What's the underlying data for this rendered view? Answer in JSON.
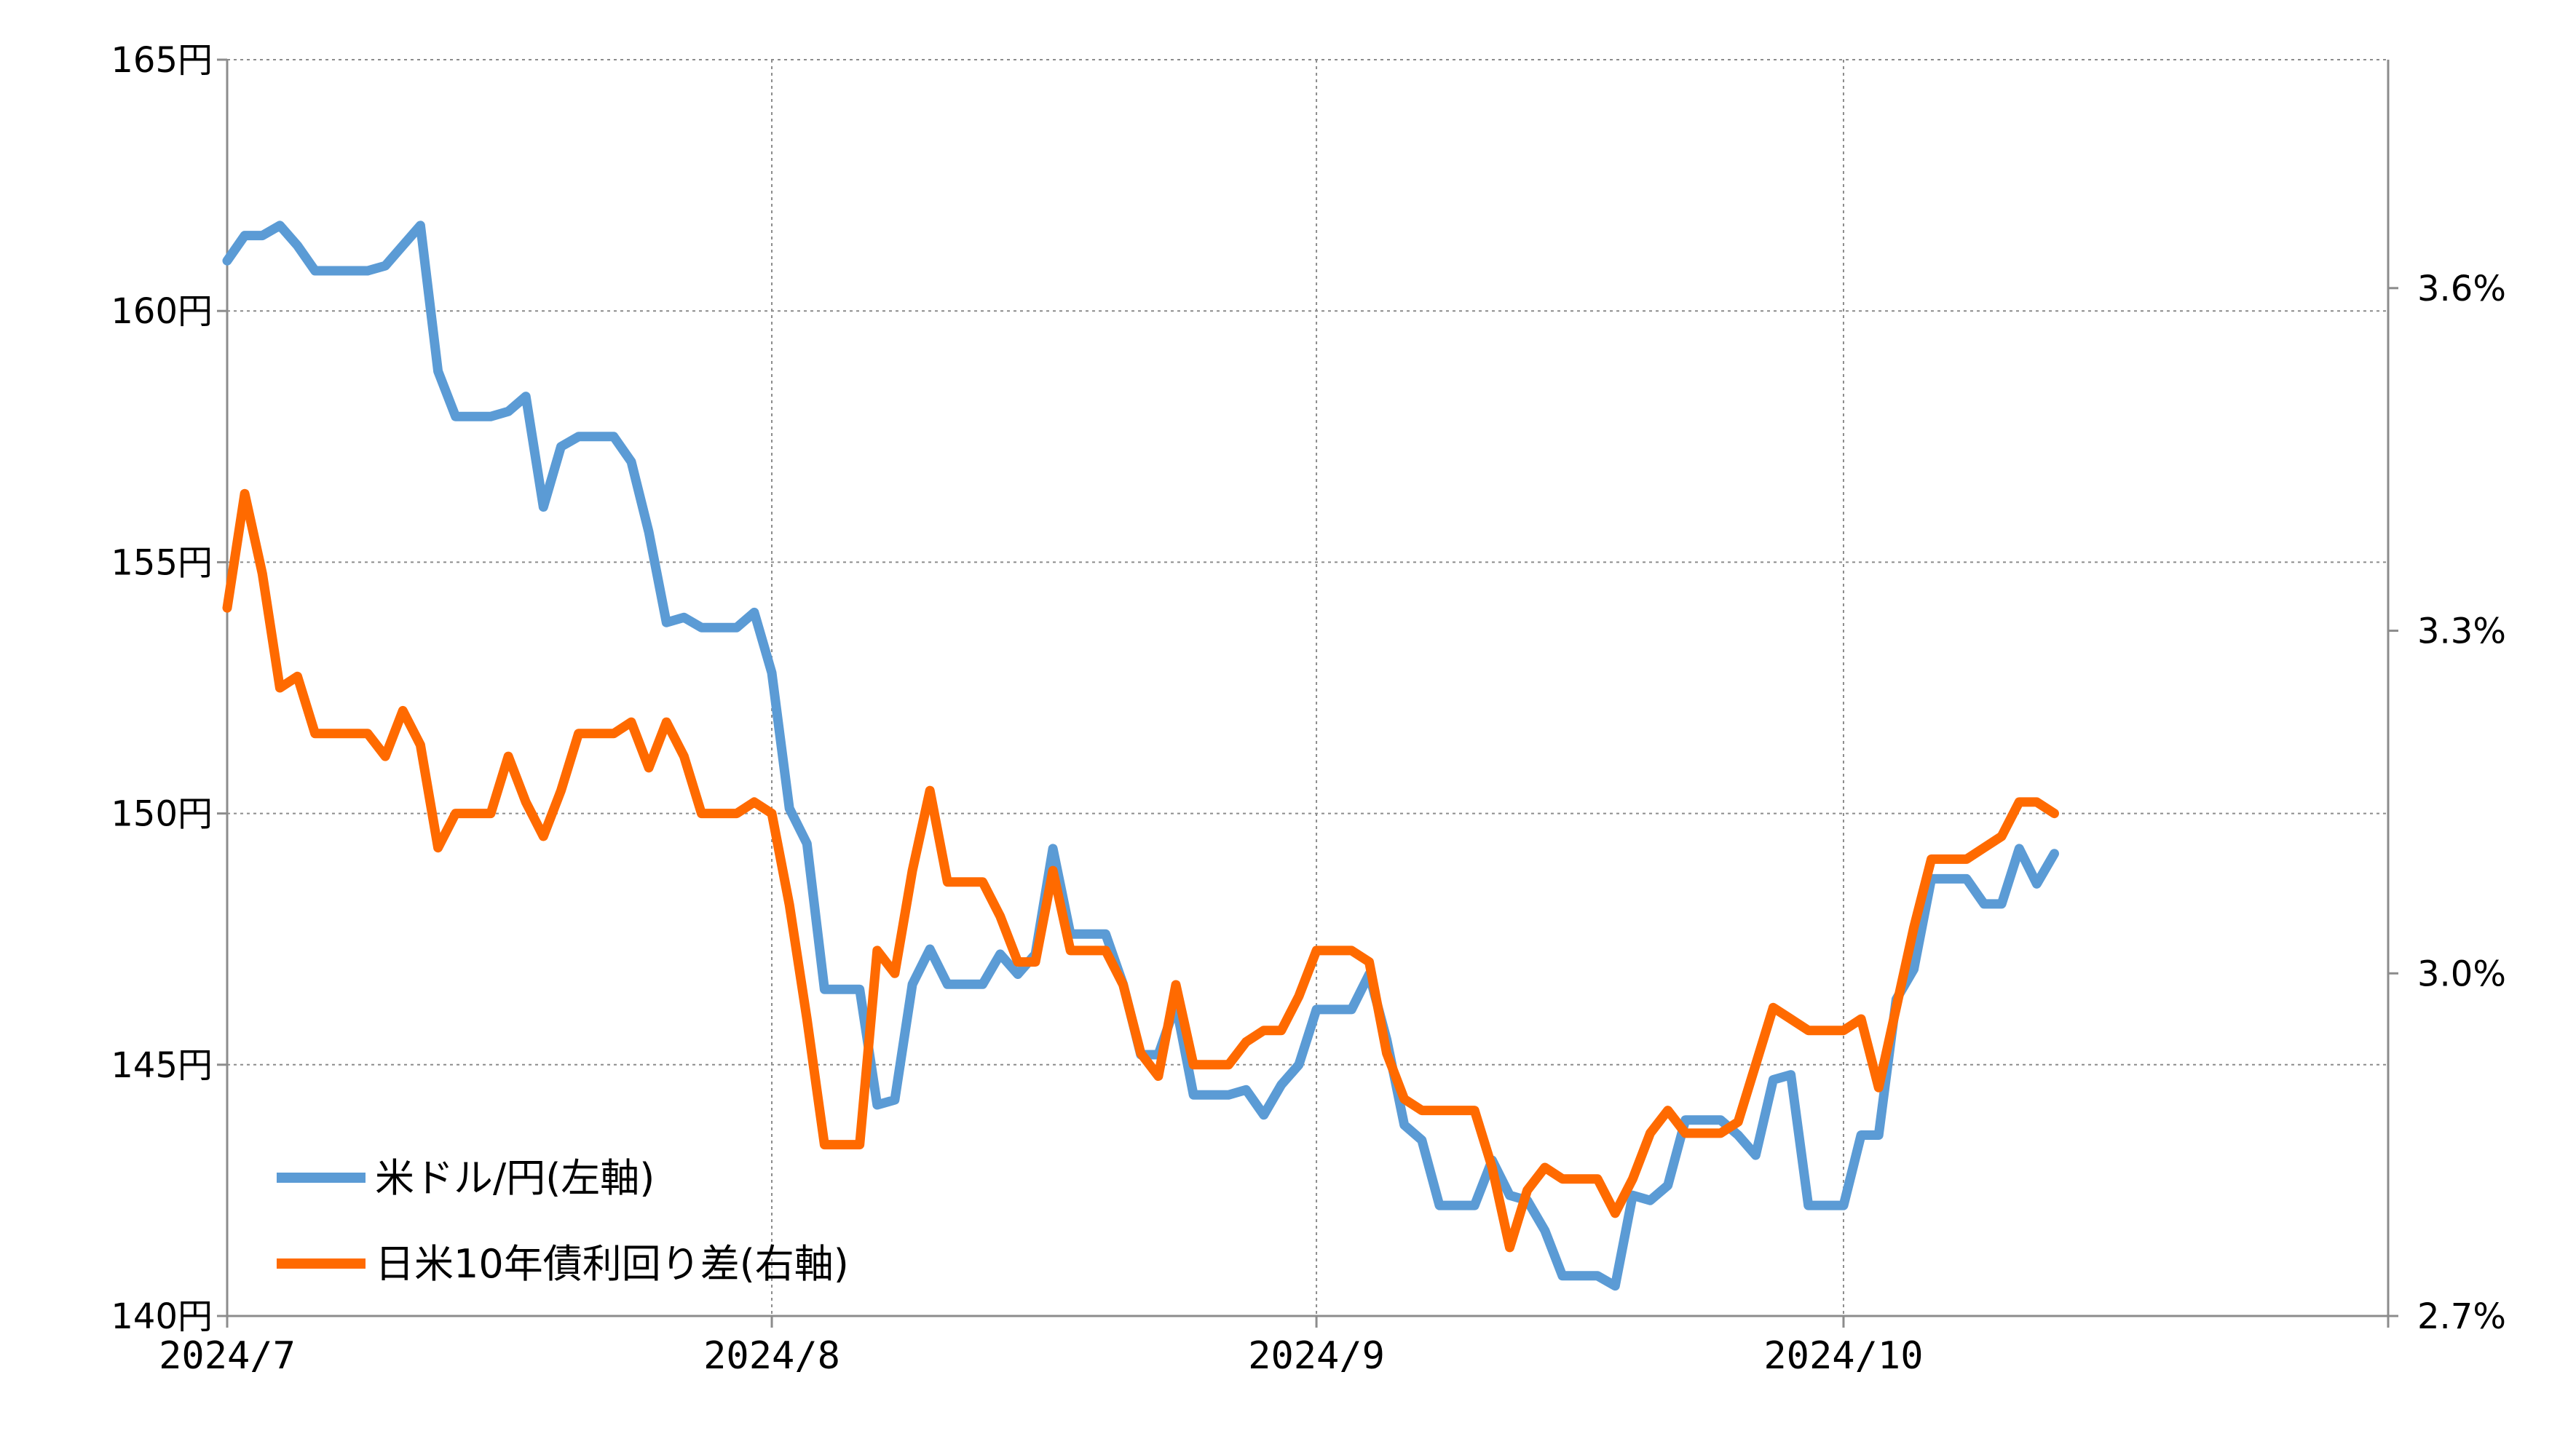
{
  "chart_data": {
    "type": "line",
    "title": "",
    "xlabel": "",
    "ylabel": "",
    "x_ticks": [
      "2024/7",
      "2024/8",
      "2024/9",
      "2024/10"
    ],
    "x_range": [
      "2024-07-01",
      "2024-11-01"
    ],
    "left_axis": {
      "range": [
        140,
        165
      ],
      "ticks": [
        {
          "value": 165,
          "label": "165円"
        },
        {
          "value": 160,
          "label": "160円"
        },
        {
          "value": 155,
          "label": "155円"
        },
        {
          "value": 150,
          "label": "150円"
        },
        {
          "value": 145,
          "label": "145円"
        },
        {
          "value": 140,
          "label": "140円"
        }
      ]
    },
    "right_axis": {
      "range": [
        2.7,
        3.8
      ],
      "ticks": [
        {
          "value": 3.6,
          "label": "3.6%"
        },
        {
          "value": 3.3,
          "label": "3.3%"
        },
        {
          "value": 3.0,
          "label": "3.0%"
        },
        {
          "value": 2.7,
          "label": "2.7%"
        }
      ]
    },
    "grid": true,
    "legend_position": "bottom-left",
    "series": [
      {
        "name": "米ドル/円(左軸)",
        "axis": "left",
        "color": "#5b9bd5",
        "points": [
          [
            "2024-07-01",
            161.0
          ],
          [
            "2024-07-02",
            161.5
          ],
          [
            "2024-07-03",
            161.5
          ],
          [
            "2024-07-04",
            161.7
          ],
          [
            "2024-07-05",
            161.3
          ],
          [
            "2024-07-06",
            160.8
          ],
          [
            "2024-07-08",
            160.8
          ],
          [
            "2024-07-09",
            160.8
          ],
          [
            "2024-07-10",
            160.9
          ],
          [
            "2024-07-11",
            161.3
          ],
          [
            "2024-07-12",
            161.7
          ],
          [
            "2024-07-13",
            158.8
          ],
          [
            "2024-07-14",
            157.9
          ],
          [
            "2024-07-16",
            157.9
          ],
          [
            "2024-07-17",
            158.0
          ],
          [
            "2024-07-18",
            158.3
          ],
          [
            "2024-07-19",
            156.1
          ],
          [
            "2024-07-20",
            157.3
          ],
          [
            "2024-07-21",
            157.5
          ],
          [
            "2024-07-23",
            157.5
          ],
          [
            "2024-07-24",
            157.0
          ],
          [
            "2024-07-25",
            155.6
          ],
          [
            "2024-07-26",
            153.8
          ],
          [
            "2024-07-27",
            153.9
          ],
          [
            "2024-07-28",
            153.7
          ],
          [
            "2024-07-30",
            153.7
          ],
          [
            "2024-07-31",
            154.0
          ],
          [
            "2024-08-01",
            152.8
          ],
          [
            "2024-08-02",
            150.1
          ],
          [
            "2024-08-03",
            149.4
          ],
          [
            "2024-08-04",
            146.5
          ],
          [
            "2024-08-06",
            146.5
          ],
          [
            "2024-08-07",
            144.2
          ],
          [
            "2024-08-08",
            144.3
          ],
          [
            "2024-08-09",
            146.6
          ],
          [
            "2024-08-10",
            147.3
          ],
          [
            "2024-08-11",
            146.6
          ],
          [
            "2024-08-13",
            146.6
          ],
          [
            "2024-08-14",
            147.2
          ],
          [
            "2024-08-15",
            146.8
          ],
          [
            "2024-08-16",
            147.2
          ],
          [
            "2024-08-17",
            149.3
          ],
          [
            "2024-08-18",
            147.6
          ],
          [
            "2024-08-20",
            147.6
          ],
          [
            "2024-08-21",
            146.6
          ],
          [
            "2024-08-22",
            145.2
          ],
          [
            "2024-08-23",
            145.2
          ],
          [
            "2024-08-24",
            146.2
          ],
          [
            "2024-08-25",
            144.4
          ],
          [
            "2024-08-27",
            144.4
          ],
          [
            "2024-08-28",
            144.5
          ],
          [
            "2024-08-29",
            144.0
          ],
          [
            "2024-08-30",
            144.6
          ],
          [
            "2024-08-31",
            145.0
          ],
          [
            "2024-09-01",
            146.1
          ],
          [
            "2024-09-03",
            146.1
          ],
          [
            "2024-09-04",
            146.8
          ],
          [
            "2024-09-05",
            145.5
          ],
          [
            "2024-09-06",
            143.8
          ],
          [
            "2024-09-07",
            143.5
          ],
          [
            "2024-09-08",
            142.2
          ],
          [
            "2024-09-10",
            142.2
          ],
          [
            "2024-09-11",
            143.1
          ],
          [
            "2024-09-12",
            142.4
          ],
          [
            "2024-09-13",
            142.3
          ],
          [
            "2024-09-14",
            141.7
          ],
          [
            "2024-09-15",
            140.8
          ],
          [
            "2024-09-17",
            140.8
          ],
          [
            "2024-09-18",
            140.6
          ],
          [
            "2024-09-19",
            142.4
          ],
          [
            "2024-09-20",
            142.3
          ],
          [
            "2024-09-21",
            142.6
          ],
          [
            "2024-09-22",
            143.9
          ],
          [
            "2024-09-24",
            143.9
          ],
          [
            "2024-09-25",
            143.6
          ],
          [
            "2024-09-26",
            143.2
          ],
          [
            "2024-09-27",
            144.7
          ],
          [
            "2024-09-28",
            144.8
          ],
          [
            "2024-09-29",
            142.2
          ],
          [
            "2024-10-01",
            142.2
          ],
          [
            "2024-10-02",
            143.6
          ],
          [
            "2024-10-03",
            143.6
          ],
          [
            "2024-10-04",
            146.3
          ],
          [
            "2024-10-05",
            146.9
          ],
          [
            "2024-10-06",
            148.7
          ],
          [
            "2024-10-08",
            148.7
          ],
          [
            "2024-10-09",
            148.2
          ],
          [
            "2024-10-10",
            148.2
          ],
          [
            "2024-10-11",
            149.3
          ],
          [
            "2024-10-12",
            148.6
          ],
          [
            "2024-10-13",
            149.2
          ]
        ]
      },
      {
        "name": "日米10年債利回り差(右軸)",
        "axis": "right",
        "color": "#ff6a00",
        "points": [
          [
            "2024-07-01",
            3.32
          ],
          [
            "2024-07-02",
            3.42
          ],
          [
            "2024-07-03",
            3.35
          ],
          [
            "2024-07-04",
            3.25
          ],
          [
            "2024-07-05",
            3.26
          ],
          [
            "2024-07-06",
            3.21
          ],
          [
            "2024-07-08",
            3.21
          ],
          [
            "2024-07-09",
            3.21
          ],
          [
            "2024-07-10",
            3.19
          ],
          [
            "2024-07-11",
            3.23
          ],
          [
            "2024-07-12",
            3.2
          ],
          [
            "2024-07-13",
            3.11
          ],
          [
            "2024-07-14",
            3.14
          ],
          [
            "2024-07-16",
            3.14
          ],
          [
            "2024-07-17",
            3.19
          ],
          [
            "2024-07-18",
            3.15
          ],
          [
            "2024-07-19",
            3.12
          ],
          [
            "2024-07-20",
            3.16
          ],
          [
            "2024-07-21",
            3.21
          ],
          [
            "2024-07-23",
            3.21
          ],
          [
            "2024-07-24",
            3.22
          ],
          [
            "2024-07-25",
            3.18
          ],
          [
            "2024-07-26",
            3.22
          ],
          [
            "2024-07-27",
            3.19
          ],
          [
            "2024-07-28",
            3.14
          ],
          [
            "2024-07-30",
            3.14
          ],
          [
            "2024-07-31",
            3.15
          ],
          [
            "2024-08-01",
            3.14
          ],
          [
            "2024-08-02",
            3.06
          ],
          [
            "2024-08-03",
            2.96
          ],
          [
            "2024-08-04",
            2.85
          ],
          [
            "2024-08-06",
            2.85
          ],
          [
            "2024-08-07",
            3.02
          ],
          [
            "2024-08-08",
            3.0
          ],
          [
            "2024-08-09",
            3.09
          ],
          [
            "2024-08-10",
            3.16
          ],
          [
            "2024-08-11",
            3.08
          ],
          [
            "2024-08-13",
            3.08
          ],
          [
            "2024-08-14",
            3.05
          ],
          [
            "2024-08-15",
            3.01
          ],
          [
            "2024-08-16",
            3.01
          ],
          [
            "2024-08-17",
            3.09
          ],
          [
            "2024-08-18",
            3.02
          ],
          [
            "2024-08-20",
            3.02
          ],
          [
            "2024-08-21",
            2.99
          ],
          [
            "2024-08-22",
            2.93
          ],
          [
            "2024-08-23",
            2.91
          ],
          [
            "2024-08-24",
            2.99
          ],
          [
            "2024-08-25",
            2.92
          ],
          [
            "2024-08-27",
            2.92
          ],
          [
            "2024-08-28",
            2.94
          ],
          [
            "2024-08-29",
            2.95
          ],
          [
            "2024-08-30",
            2.95
          ],
          [
            "2024-08-31",
            2.98
          ],
          [
            "2024-09-01",
            3.02
          ],
          [
            "2024-09-03",
            3.02
          ],
          [
            "2024-09-04",
            3.01
          ],
          [
            "2024-09-05",
            2.93
          ],
          [
            "2024-09-06",
            2.89
          ],
          [
            "2024-09-07",
            2.88
          ],
          [
            "2024-09-08",
            2.88
          ],
          [
            "2024-09-10",
            2.88
          ],
          [
            "2024-09-11",
            2.83
          ],
          [
            "2024-09-12",
            2.76
          ],
          [
            "2024-09-13",
            2.81
          ],
          [
            "2024-09-14",
            2.83
          ],
          [
            "2024-09-15",
            2.82
          ],
          [
            "2024-09-17",
            2.82
          ],
          [
            "2024-09-18",
            2.79
          ],
          [
            "2024-09-19",
            2.82
          ],
          [
            "2024-09-20",
            2.86
          ],
          [
            "2024-09-21",
            2.88
          ],
          [
            "2024-09-22",
            2.86
          ],
          [
            "2024-09-24",
            2.86
          ],
          [
            "2024-09-25",
            2.87
          ],
          [
            "2024-09-26",
            2.92
          ],
          [
            "2024-09-27",
            2.97
          ],
          [
            "2024-09-28",
            2.96
          ],
          [
            "2024-09-29",
            2.95
          ],
          [
            "2024-10-01",
            2.95
          ],
          [
            "2024-10-02",
            2.96
          ],
          [
            "2024-10-03",
            2.9
          ],
          [
            "2024-10-04",
            2.97
          ],
          [
            "2024-10-05",
            3.04
          ],
          [
            "2024-10-06",
            3.1
          ],
          [
            "2024-10-08",
            3.1
          ],
          [
            "2024-10-09",
            3.11
          ],
          [
            "2024-10-10",
            3.12
          ],
          [
            "2024-10-11",
            3.15
          ],
          [
            "2024-10-12",
            3.15
          ],
          [
            "2024-10-13",
            3.14
          ]
        ]
      }
    ]
  }
}
